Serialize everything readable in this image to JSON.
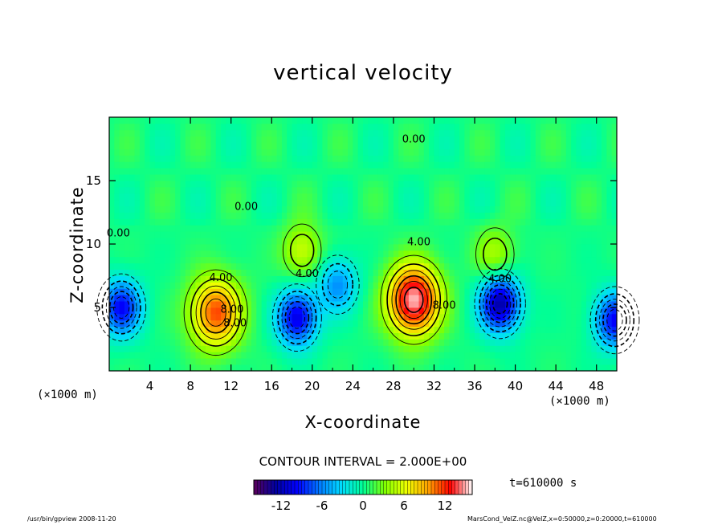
{
  "chart_data": {
    "type": "heatmap",
    "title": "vertical velocity",
    "xlabel": "X-coordinate",
    "ylabel": "Z-coordinate",
    "x_unit_label_left": "(×1000 m)",
    "x_unit_label_right": "(×1000 m)",
    "xlim": [
      0,
      50
    ],
    "ylim": [
      0,
      20
    ],
    "xticks": [
      4,
      8,
      12,
      16,
      20,
      24,
      28,
      32,
      36,
      40,
      44,
      48
    ],
    "yticks": [
      5,
      10,
      15
    ],
    "contour_interval_text": "CONTOUR INTERVAL = 2.000E+00",
    "contour_labels": [
      {
        "text": "4.00",
        "x": 11,
        "z": 7.1
      },
      {
        "text": "8.00",
        "x": 12.1,
        "z": 4.6
      },
      {
        "text": "8.00",
        "x": 12.4,
        "z": 3.5
      },
      {
        "text": "4.00",
        "x": 30.5,
        "z": 9.9
      },
      {
        "text": "8.00",
        "x": 33.0,
        "z": 4.9
      },
      {
        "text": "4.00",
        "x": 38.5,
        "z": 7.0
      },
      {
        "text": "4.00",
        "x": 19.5,
        "z": 7.4
      },
      {
        "text": "0.00",
        "x": 0.9,
        "z": 10.6
      },
      {
        "text": "0.00",
        "x": 13.5,
        "z": 12.7
      },
      {
        "text": "0.00",
        "x": 30.0,
        "z": 18.0
      }
    ],
    "features": [
      {
        "kind": "max",
        "x": 30.0,
        "z": 5.6,
        "value": 15
      },
      {
        "kind": "max",
        "x": 10.5,
        "z": 4.6,
        "value": 11
      },
      {
        "kind": "max",
        "x": 19.0,
        "z": 9.5,
        "value": 5
      },
      {
        "kind": "max",
        "x": 38.0,
        "z": 9.2,
        "value": 4
      },
      {
        "kind": "min",
        "x": 1.2,
        "z": 5.0,
        "value": -10
      },
      {
        "kind": "min",
        "x": 18.5,
        "z": 4.2,
        "value": -11
      },
      {
        "kind": "min",
        "x": 38.5,
        "z": 5.3,
        "value": -13
      },
      {
        "kind": "min",
        "x": 22.5,
        "z": 6.8,
        "value": -6
      },
      {
        "kind": "min",
        "x": 49.8,
        "z": 4.0,
        "value": -10
      }
    ],
    "colorbar": {
      "vmin": -16,
      "vmax": 16,
      "ticks": [
        -12,
        -6,
        0,
        6,
        12
      ],
      "colors": [
        "#5a005a",
        "#0000a0",
        "#0000ff",
        "#0078ff",
        "#00dcff",
        "#00ff96",
        "#80ff00",
        "#f0ff00",
        "#ffa000",
        "#ff0000",
        "#ffffff"
      ]
    }
  },
  "annotations": {
    "time": "t=610000 s",
    "footer_left": "/usr/bin/gpview   2008-11-20",
    "footer_right": "MarsCond_VelZ.nc@VelZ,x=0:50000,z=0:20000,t=610000"
  }
}
